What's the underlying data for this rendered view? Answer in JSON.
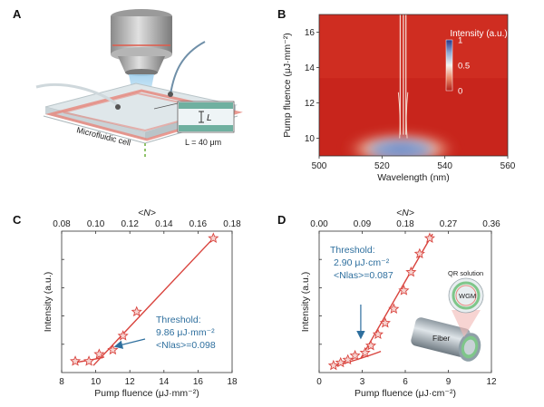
{
  "panels": {
    "a": {
      "letter": "A",
      "cell_label": "Microfluidic cell",
      "inset_symbol": "L",
      "length_label": "L = 40 μm"
    }
  },
  "colors": {
    "data_red": "#d9443e",
    "annotation_blue": "#2e6f9e",
    "heatmap_high": "#2a3f88",
    "heatmap_low": "#c8251c"
  },
  "chart_data": [
    {
      "panel": "B",
      "type": "heatmap",
      "xlabel": "Wavelength (nm)",
      "ylabel": "Pump fluence (μJ·mm⁻²)",
      "xlim": [
        500,
        560
      ],
      "ylim": [
        9,
        17
      ],
      "xticks": [
        "500",
        "520",
        "540",
        "560"
      ],
      "yticks": [
        "10",
        "12",
        "14",
        "16"
      ],
      "colorbar": {
        "label": "Intensity (a.u.)",
        "ticks": [
          "1",
          "0.5",
          "0"
        ],
        "range": [
          0,
          1
        ]
      },
      "lasing_lines_nm": [
        525.8,
        526.8,
        527.6
      ],
      "emission_center_nm": 526,
      "emission_peak_fluence": 9.6
    },
    {
      "panel": "C",
      "type": "scatter",
      "xlabel": "Pump fluence (μJ·mm⁻²)",
      "ylabel": "Intensity (a.u.)",
      "top_xlabel": "<N>",
      "xlim": [
        8,
        18
      ],
      "xticks": [
        "8",
        "10",
        "12",
        "14",
        "16",
        "18"
      ],
      "top_xlim": [
        0.08,
        0.18
      ],
      "top_xticks": [
        "0.08",
        "0.10",
        "0.12",
        "0.14",
        "0.16",
        "0.18"
      ],
      "ylim": [
        0,
        1
      ],
      "x": [
        8.8,
        9.6,
        10.2,
        11.0,
        11.6,
        12.4,
        16.9
      ],
      "y": [
        0.08,
        0.08,
        0.13,
        0.16,
        0.26,
        0.43,
        0.95
      ],
      "threshold": {
        "line1": "Threshold:",
        "line2": "9.86 μJ·mm⁻²",
        "line3": "<Nlas>=0.098",
        "value": 9.86
      },
      "fit_below": [
        [
          8.7,
          0.07
        ],
        [
          9.86,
          0.09
        ],
        [
          10.5,
          0.11
        ]
      ],
      "fit_above": [
        [
          9.86,
          0.05
        ],
        [
          16.9,
          0.95
        ]
      ]
    },
    {
      "panel": "D",
      "type": "scatter",
      "xlabel": "Pump fluence (μJ·cm⁻²)",
      "ylabel": "Intensity (a.u.)",
      "top_xlabel": "<N>",
      "xlim": [
        0,
        12
      ],
      "xticks": [
        "0",
        "3",
        "6",
        "9",
        "12"
      ],
      "top_xlim": [
        0,
        0.36
      ],
      "top_xticks": [
        "0.00",
        "0.09",
        "0.18",
        "0.27",
        "0.36"
      ],
      "ylim": [
        0,
        1
      ],
      "x": [
        1.0,
        1.5,
        2.0,
        2.5,
        3.2,
        3.6,
        4.1,
        4.6,
        5.2,
        5.9,
        6.4,
        7.0,
        7.7
      ],
      "y": [
        0.05,
        0.07,
        0.09,
        0.12,
        0.14,
        0.19,
        0.27,
        0.35,
        0.45,
        0.58,
        0.71,
        0.84,
        0.95
      ],
      "threshold": {
        "line1": "Threshold:",
        "line2": "2.90 μJ·cm⁻²",
        "line3": "<Nlas>=0.087",
        "value": 2.9
      },
      "fit_below": [
        [
          0.9,
          0.04
        ],
        [
          3.0,
          0.1
        ],
        [
          4.3,
          0.15
        ]
      ],
      "fit_above": [
        [
          2.9,
          0.1
        ],
        [
          7.9,
          0.98
        ]
      ],
      "inset_labels": {
        "solution": "QR solution",
        "mode": "WGM",
        "fiber": "Fiber"
      }
    }
  ]
}
